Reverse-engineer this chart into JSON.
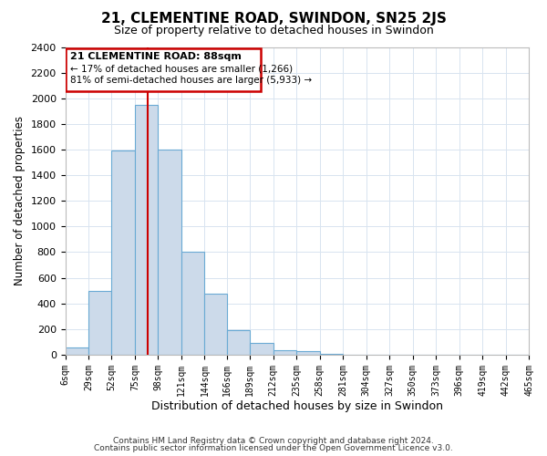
{
  "title": "21, CLEMENTINE ROAD, SWINDON, SN25 2JS",
  "subtitle": "Size of property relative to detached houses in Swindon",
  "xlabel": "Distribution of detached houses by size in Swindon",
  "ylabel": "Number of detached properties",
  "bar_color": "#ccdaea",
  "bar_edge_color": "#6aaad4",
  "background_color": "#f8f8ff",
  "grid_color": "#e0e8f0",
  "annotation_box_edge": "#cc0000",
  "red_line_x": 88,
  "annotation_line1": "21 CLEMENTINE ROAD: 88sqm",
  "annotation_line2": "← 17% of detached houses are smaller (1,266)",
  "annotation_line3": "81% of semi-detached houses are larger (5,933) →",
  "footer_line1": "Contains HM Land Registry data © Crown copyright and database right 2024.",
  "footer_line2": "Contains public sector information licensed under the Open Government Licence v3.0.",
  "bin_edges": [
    6,
    29,
    52,
    75,
    98,
    121,
    144,
    166,
    189,
    212,
    235,
    258,
    281,
    304,
    327,
    350,
    373,
    396,
    419,
    442,
    465
  ],
  "bar_heights": [
    55,
    500,
    1590,
    1950,
    1600,
    800,
    475,
    190,
    95,
    35,
    30,
    5,
    0,
    0,
    0,
    0,
    0,
    0,
    0,
    0
  ],
  "ylim": [
    0,
    2400
  ],
  "yticks": [
    0,
    200,
    400,
    600,
    800,
    1000,
    1200,
    1400,
    1600,
    1800,
    2000,
    2200,
    2400
  ]
}
